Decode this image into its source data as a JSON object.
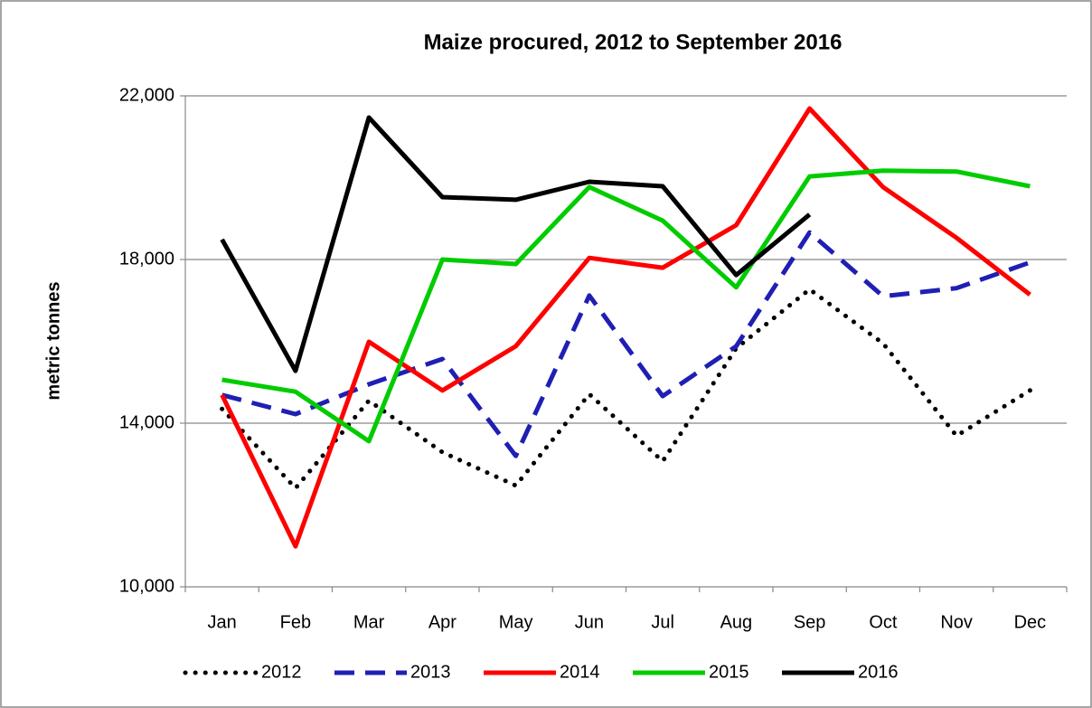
{
  "chart_data": {
    "type": "line",
    "title": "Maize procured, 2012 to September 2016",
    "y_label": "metric tonnes",
    "categories": [
      "Jan",
      "Feb",
      "Mar",
      "Apr",
      "May",
      "Jun",
      "Jul",
      "Aug",
      "Sep",
      "Oct",
      "Nov",
      "Dec"
    ],
    "ylim": [
      10000,
      22000
    ],
    "yticks": [
      {
        "value": 10000,
        "label": "10,000"
      },
      {
        "value": 14000,
        "label": "14,000"
      },
      {
        "value": 18000,
        "label": "18,000"
      },
      {
        "value": 22000,
        "label": "22,000"
      }
    ],
    "grid": true,
    "legend": "bottom",
    "series": [
      {
        "name": "2012",
        "color": "#000000",
        "style": "dotted",
        "values": [
          14350,
          12410,
          14550,
          13290,
          12475,
          14710,
          13070,
          15830,
          17270,
          15950,
          13690,
          14800
        ]
      },
      {
        "name": "2013",
        "color": "#1f1fb4",
        "style": "dashed",
        "values": [
          14690,
          14220,
          14950,
          15570,
          13200,
          17120,
          14660,
          15880,
          18660,
          17100,
          17300,
          17930
        ]
      },
      {
        "name": "2014",
        "color": "#ff0000",
        "style": "solid",
        "values": [
          14690,
          10990,
          15990,
          14800,
          15880,
          18040,
          17800,
          18840,
          21690,
          19770,
          18530,
          17140
        ]
      },
      {
        "name": "2015",
        "color": "#00cc00",
        "style": "solid",
        "values": [
          15060,
          14770,
          13560,
          18000,
          17890,
          19770,
          18950,
          17320,
          20030,
          20170,
          20150,
          19790
        ]
      },
      {
        "name": "2016",
        "color": "#000000",
        "style": "solid",
        "values": [
          18490,
          15280,
          21470,
          19525,
          19460,
          19900,
          19790,
          17620,
          19100,
          null,
          null,
          null
        ]
      }
    ]
  }
}
